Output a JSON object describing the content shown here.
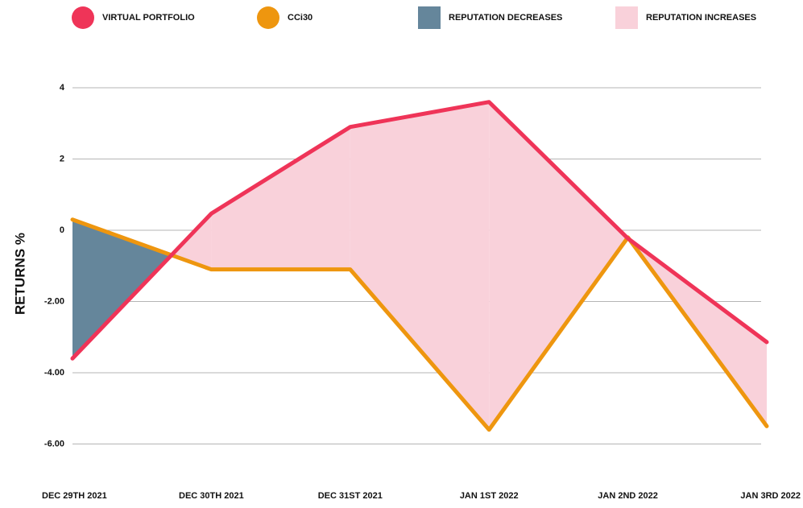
{
  "chart_data": {
    "type": "line",
    "ylabel": "RETURNS %",
    "categories": [
      "DEC 29TH 2021",
      "DEC 30TH 2021",
      "DEC 31ST 2021",
      "JAN 1ST 2022",
      "JAN 2ND 2022",
      "JAN 3RD 2022"
    ],
    "series": [
      {
        "name": "VIRTUAL PORTFOLIO",
        "color": "#ef3458",
        "values": [
          -3.6,
          0.47,
          2.9,
          3.6,
          -0.23,
          -3.14
        ]
      },
      {
        "name": "CCi30",
        "color": "#ee960f",
        "values": [
          0.3,
          -1.1,
          -1.1,
          -5.6,
          -0.2,
          -5.5
        ]
      }
    ],
    "fills": [
      {
        "name": "REPUTATION DECREASES",
        "color": "#65869b"
      },
      {
        "name": "REPUTATION INCREASES",
        "color": "#f9d1da"
      }
    ],
    "ylim": [
      -6.5,
      4.5
    ],
    "yticks": [
      4,
      2,
      0,
      {
        "value": -2,
        "label": "-2.00"
      },
      {
        "value": -4,
        "label": "-4.00"
      },
      {
        "value": -6,
        "label": "-6.00"
      }
    ],
    "grid": true
  }
}
